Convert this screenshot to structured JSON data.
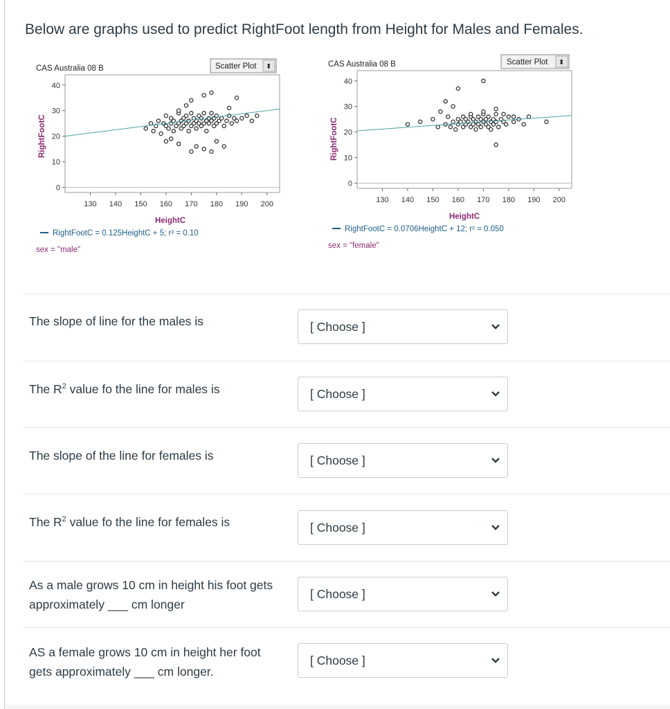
{
  "question": {
    "intro": "Below are graphs used to predict RightFoot length from Height for Males and Females."
  },
  "plots": {
    "male": {
      "source": "CAS Australia 08 B",
      "dropdown": "Scatter Plot",
      "ylabel": "RightFootC",
      "xlabel": "HeightC",
      "yticks": [
        "40",
        "30",
        "20",
        "10",
        "0"
      ],
      "xticks": [
        "130",
        "140",
        "150",
        "160",
        "170",
        "180",
        "190",
        "200"
      ],
      "equation": "RightFootC = 0.125HeightC + 5; r² = 0.10",
      "filter": "sex = \"male\"",
      "line_color": "#4aa3a3"
    },
    "female": {
      "source": "CAS Australia 08 B",
      "dropdown": "Scatter Plot",
      "ylabel": "RightFootC",
      "xlabel": "HeightC",
      "yticks": [
        "40",
        "30",
        "20",
        "10",
        "0"
      ],
      "xticks": [
        "130",
        "140",
        "150",
        "160",
        "170",
        "180",
        "190",
        "200"
      ],
      "equation": "RightFootC = 0.0706HeightC + 12; r² = 0.050",
      "filter": "sex = \"female\"",
      "line_color": "#4aa3a3"
    }
  },
  "chart_data": [
    {
      "type": "scatter",
      "title": "",
      "xlabel": "HeightC",
      "ylabel": "RightFootC",
      "xlim": [
        120,
        205
      ],
      "ylim": [
        -2,
        44
      ],
      "regression": {
        "slope": 0.125,
        "intercept": 5,
        "r2": 0.1
      },
      "series": [
        {
          "x": [
            152,
            154,
            155,
            156,
            157,
            158,
            159,
            160,
            160,
            161,
            162,
            162,
            163,
            163,
            164,
            165,
            165,
            166,
            166,
            167,
            167,
            168,
            168,
            169,
            169,
            170,
            170,
            171,
            171,
            172,
            172,
            173,
            173,
            174,
            174,
            175,
            175,
            176,
            176,
            177,
            177,
            178,
            178,
            179,
            179,
            180,
            180,
            181,
            182,
            183,
            184,
            185,
            186,
            187,
            188,
            190,
            192,
            194,
            196,
            160,
            162,
            165,
            170,
            172,
            175,
            178,
            180,
            183,
            170,
            175,
            178,
            165,
            168,
            185,
            188
          ],
          "y": [
            23,
            25,
            22,
            24,
            26,
            21,
            25,
            24,
            28,
            23,
            25,
            27,
            22,
            26,
            24,
            25,
            29,
            23,
            26,
            24,
            27,
            25,
            28,
            22,
            26,
            24,
            29,
            25,
            27,
            23,
            26,
            25,
            28,
            24,
            27,
            25,
            29,
            26,
            22,
            27,
            25,
            26,
            29,
            24,
            27,
            25,
            28,
            26,
            27,
            24,
            26,
            28,
            25,
            27,
            26,
            27,
            28,
            26,
            28,
            18,
            19,
            17,
            14,
            16,
            15,
            14,
            18,
            16,
            34,
            36,
            37,
            30,
            32,
            31,
            35
          ]
        }
      ]
    },
    {
      "type": "scatter",
      "title": "",
      "xlabel": "HeightC",
      "ylabel": "RightFootC",
      "xlim": [
        120,
        205
      ],
      "ylim": [
        -2,
        44
      ],
      "regression": {
        "slope": 0.0706,
        "intercept": 12,
        "r2": 0.05
      },
      "series": [
        {
          "x": [
            140,
            145,
            150,
            152,
            155,
            156,
            157,
            158,
            159,
            160,
            160,
            161,
            162,
            162,
            163,
            163,
            164,
            165,
            165,
            166,
            166,
            167,
            167,
            168,
            168,
            169,
            169,
            170,
            170,
            171,
            171,
            172,
            172,
            173,
            173,
            174,
            174,
            175,
            175,
            176,
            177,
            178,
            179,
            180,
            182,
            184,
            186,
            188,
            195,
            153,
            155,
            158,
            165,
            170,
            175,
            178,
            182,
            160,
            170,
            175
          ],
          "y": [
            23,
            24,
            25,
            22,
            23,
            26,
            22,
            24,
            21,
            25,
            23,
            24,
            22,
            26,
            23,
            25,
            24,
            22,
            26,
            23,
            25,
            21,
            24,
            26,
            23,
            25,
            22,
            24,
            27,
            23,
            25,
            22,
            26,
            24,
            21,
            25,
            23,
            24,
            27,
            22,
            25,
            24,
            23,
            26,
            24,
            25,
            23,
            26,
            24,
            28,
            32,
            30,
            27,
            28,
            29,
            27,
            26,
            37,
            40,
            15
          ]
        }
      ]
    }
  ],
  "rows": [
    {
      "label": "The slope of line for the males is",
      "value": "[ Choose ]"
    },
    {
      "label_pre": "The R",
      "label_sup": "2",
      "label_post": " value fo the line for males is",
      "value": "[ Choose ]"
    },
    {
      "label": "The slope of the line for females is",
      "value": "[ Choose ]"
    },
    {
      "label_pre": "The R",
      "label_sup": "2",
      "label_post": " value fo the line for females is",
      "value": "[ Choose ]"
    },
    {
      "label_line1": "As a male grows 10 cm in height his foot gets",
      "label_line2": "approximately ___ cm longer",
      "value": "[ Choose ]"
    },
    {
      "label_line1": "AS a female grows 10 cm in height her foot",
      "label_line2": "gets approximately ___ cm longer.",
      "value": "[ Choose ]"
    }
  ]
}
